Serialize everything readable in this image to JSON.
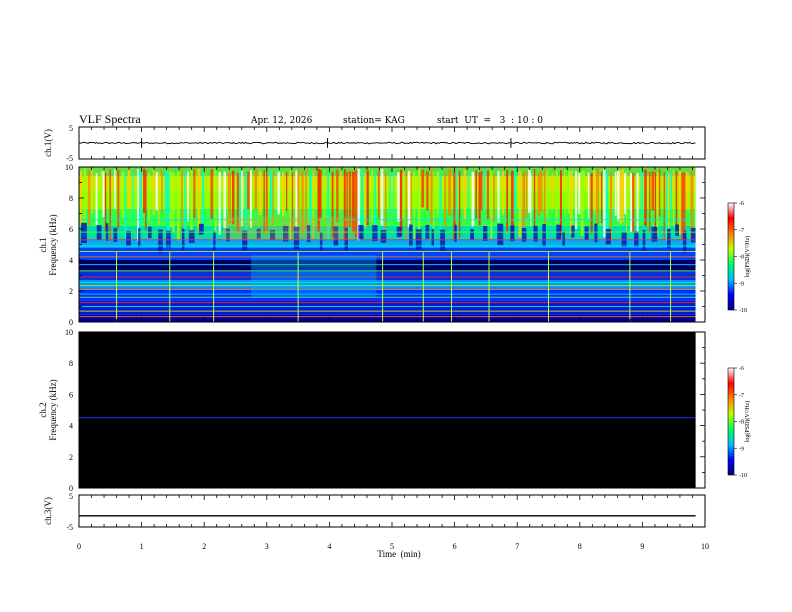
{
  "header": {
    "title": "VLF Spectra",
    "date": "Apr. 12, 2026",
    "station": "station= KAG",
    "start": "start  UT  =   3  : 10 : 0"
  },
  "chart_data": [
    {
      "type": "line",
      "name": "ch1-waveform",
      "ylabel": "ch.1(V)",
      "ylim": [
        -5,
        5
      ],
      "ytick_labels": [
        "5",
        "-5"
      ],
      "xlim": [
        0,
        10
      ],
      "baseline_value": 0,
      "spike_times_min": [
        1.0,
        3.97,
        6.9
      ]
    },
    {
      "type": "heatmap",
      "name": "ch1-spectrogram",
      "ylabel": "ch.1\nFrequency (kHz)",
      "ylim": [
        0,
        10
      ],
      "ytick_labels": [
        "0",
        "2",
        "4",
        "6",
        "8",
        "10"
      ],
      "xlim": [
        0,
        10
      ],
      "data_end_min": 9.85,
      "colorbar": {
        "label": "log(PSD)(V²/Hz)",
        "range": [
          -10,
          -6
        ],
        "tick_labels": [
          "-6",
          "-7",
          "-8",
          "-9",
          "-10"
        ],
        "colors": [
          "#000080",
          "#0000ff",
          "#00c0ff",
          "#00ff60",
          "#c0ff00",
          "#ff8000",
          "#ff0000",
          "#ffffff"
        ]
      },
      "tone_lines_khz": [
        0.35,
        0.7,
        1.0,
        1.25,
        1.6,
        1.8,
        2.1,
        2.35,
        2.55,
        2.9,
        3.3,
        3.7,
        4.2,
        4.55,
        4.9,
        5.3,
        5.8,
        6.6
      ],
      "vertical_lines_min": [
        0.6,
        1.45,
        2.15,
        3.5,
        4.85,
        5.5,
        5.95,
        6.55,
        7.5,
        8.8,
        9.45
      ]
    },
    {
      "type": "heatmap",
      "name": "ch2-spectrogram",
      "ylabel": "ch.2\nFrequency (kHz)",
      "ylim": [
        0,
        10
      ],
      "ytick_labels": [
        "0",
        "2",
        "4",
        "6",
        "8",
        "10"
      ],
      "xlim": [
        0,
        10
      ],
      "data_end_min": 9.85,
      "tone_line_khz": 4.5,
      "colorbar": {
        "label": "log(PSD)(V²/Hz)",
        "range": [
          -10,
          -6
        ],
        "tick_labels": [
          "-6",
          "-7",
          "-8",
          "-9",
          "-10"
        ]
      }
    },
    {
      "type": "line",
      "name": "ch3-waveform",
      "ylabel": "ch.3(V)",
      "ylim": [
        -5,
        5
      ],
      "ytick_labels": [
        "5",
        "-5"
      ],
      "xlim": [
        0,
        10
      ],
      "baseline_value": -1.5
    }
  ],
  "xaxis": {
    "label": "Time  (min)",
    "ticks": [
      "0",
      "1",
      "2",
      "3",
      "4",
      "5",
      "6",
      "7",
      "8",
      "9",
      "10"
    ]
  }
}
